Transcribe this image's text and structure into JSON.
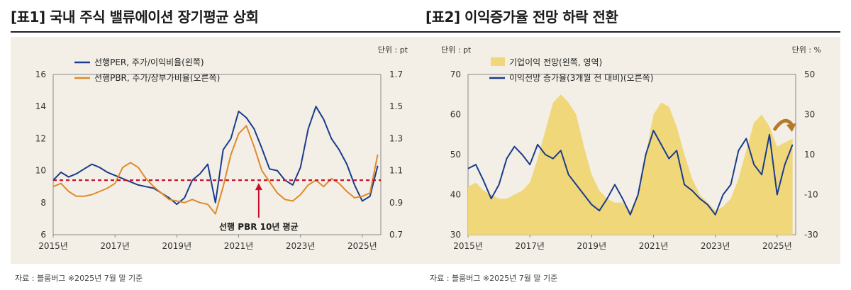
{
  "colors": {
    "navy": "#1a3c8c",
    "orange": "#e08a2a",
    "gold_area": "#f0d77a",
    "red_dashed": "#c8102e",
    "panel_bg": "#f3efe6"
  },
  "panels": [
    {
      "title": "[표1] 국내 주식 밸류에이션 장기평균 상회",
      "source": "자료 : 블룸버그 ※2025년 7월 말 기준"
    },
    {
      "title": "[표2] 이익증가율 전망 하락 전환",
      "source": "자료 : 블룸버그 ※2025년 7월 말 기준"
    }
  ],
  "chart_data": [
    {
      "type": "line",
      "unit_label": "단위 : pt",
      "x_ticks": [
        "2015년",
        "2017년",
        "2019년",
        "2021년",
        "2023년",
        "2025년"
      ],
      "x_range": [
        2015.0,
        2025.6
      ],
      "y_left": {
        "range": [
          6,
          16
        ],
        "ticks": [
          "16",
          "14",
          "12",
          "10",
          "8",
          "6"
        ]
      },
      "y_right": {
        "range": [
          0.7,
          1.7
        ],
        "ticks": [
          "1.7",
          "1.5",
          "1.3",
          "1.1",
          "0.9",
          "0.7"
        ]
      },
      "series": [
        {
          "name": "선행PER, 주가/이익비율(왼쪽)",
          "axis": "left",
          "color": "navy",
          "x": [
            2015.0,
            2015.25,
            2015.5,
            2015.75,
            2016.0,
            2016.25,
            2016.5,
            2016.75,
            2017.0,
            2017.25,
            2017.5,
            2017.75,
            2018.0,
            2018.25,
            2018.5,
            2018.75,
            2019.0,
            2019.25,
            2019.5,
            2019.75,
            2020.0,
            2020.25,
            2020.5,
            2020.75,
            2021.0,
            2021.25,
            2021.5,
            2021.75,
            2022.0,
            2022.25,
            2022.5,
            2022.75,
            2023.0,
            2023.25,
            2023.5,
            2023.75,
            2024.0,
            2024.25,
            2024.5,
            2024.75,
            2025.0,
            2025.25,
            2025.5
          ],
          "values": [
            9.4,
            9.9,
            9.6,
            9.8,
            10.1,
            10.4,
            10.2,
            9.9,
            9.7,
            9.5,
            9.3,
            9.1,
            9.0,
            8.9,
            8.6,
            8.3,
            7.9,
            8.3,
            9.4,
            9.8,
            10.4,
            8.0,
            11.3,
            12.0,
            13.7,
            13.3,
            12.6,
            11.4,
            10.1,
            10.0,
            9.4,
            9.1,
            10.2,
            12.6,
            14.0,
            13.2,
            12.0,
            11.3,
            10.4,
            9.1,
            8.1,
            8.4,
            10.3
          ]
        },
        {
          "name": "선행PBR, 주가/장부가비율(오른쪽)",
          "axis": "right",
          "color": "orange",
          "x": [
            2015.0,
            2015.25,
            2015.5,
            2015.75,
            2016.0,
            2016.25,
            2016.5,
            2016.75,
            2017.0,
            2017.25,
            2017.5,
            2017.75,
            2018.0,
            2018.25,
            2018.5,
            2018.75,
            2019.0,
            2019.25,
            2019.5,
            2019.75,
            2020.0,
            2020.25,
            2020.5,
            2020.75,
            2021.0,
            2021.25,
            2021.5,
            2021.75,
            2022.0,
            2022.25,
            2022.5,
            2022.75,
            2023.0,
            2023.25,
            2023.5,
            2023.75,
            2024.0,
            2024.25,
            2024.5,
            2024.75,
            2025.0,
            2025.25,
            2025.5
          ],
          "values": [
            1.0,
            1.02,
            0.97,
            0.94,
            0.94,
            0.95,
            0.97,
            0.99,
            1.02,
            1.12,
            1.15,
            1.12,
            1.05,
            1.0,
            0.96,
            0.92,
            0.91,
            0.9,
            0.92,
            0.9,
            0.89,
            0.83,
            1.0,
            1.2,
            1.33,
            1.38,
            1.25,
            1.1,
            1.03,
            0.96,
            0.92,
            0.91,
            0.95,
            1.01,
            1.04,
            1.0,
            1.05,
            1.02,
            0.97,
            0.93,
            0.94,
            0.96,
            1.2
          ]
        }
      ],
      "reference_line": {
        "value": 9.4,
        "axis": "left",
        "label": "선행 PBR 10년 평균"
      }
    },
    {
      "type": "area",
      "unit_label_left": "단위 : pt",
      "unit_label_right": "단위 : %",
      "x_ticks": [
        "2015년",
        "2017년",
        "2019년",
        "2021년",
        "2023년",
        "2025년"
      ],
      "x_range": [
        2015.0,
        2025.6
      ],
      "y_left": {
        "range": [
          30,
          70
        ],
        "ticks": [
          "70",
          "60",
          "50",
          "40",
          "30"
        ]
      },
      "y_right": {
        "range": [
          -30,
          50
        ],
        "ticks": [
          "50",
          "30",
          "10",
          "-10",
          "-30"
        ]
      },
      "series": [
        {
          "name": "기업이익 전망(왼쪽, 영역)",
          "axis": "left",
          "style": "area",
          "color": "gold_area",
          "x": [
            2015.0,
            2015.25,
            2015.5,
            2015.75,
            2016.0,
            2016.25,
            2016.5,
            2016.75,
            2017.0,
            2017.25,
            2017.5,
            2017.75,
            2018.0,
            2018.25,
            2018.5,
            2018.75,
            2019.0,
            2019.25,
            2019.5,
            2019.75,
            2020.0,
            2020.25,
            2020.5,
            2020.75,
            2021.0,
            2021.25,
            2021.5,
            2021.75,
            2022.0,
            2022.25,
            2022.5,
            2022.75,
            2023.0,
            2023.25,
            2023.5,
            2023.75,
            2024.0,
            2024.25,
            2024.5,
            2024.75,
            2025.0,
            2025.25,
            2025.5
          ],
          "values": [
            42,
            43,
            41,
            40,
            39,
            39,
            40,
            41,
            43,
            49,
            56,
            63,
            65,
            63,
            60,
            52,
            45,
            41,
            39,
            38,
            38,
            36,
            40,
            50,
            60,
            63,
            62,
            57,
            50,
            44,
            40,
            38,
            36,
            37,
            39,
            44,
            51,
            58,
            60,
            57,
            52,
            53,
            54
          ]
        },
        {
          "name": "이익전망 증가율(3개월 전 대비)(오른쪽)",
          "axis": "right",
          "style": "line",
          "color": "navy",
          "x": [
            2015.0,
            2015.25,
            2015.5,
            2015.75,
            2016.0,
            2016.25,
            2016.5,
            2016.75,
            2017.0,
            2017.25,
            2017.5,
            2017.75,
            2018.0,
            2018.25,
            2018.5,
            2018.75,
            2019.0,
            2019.25,
            2019.5,
            2019.75,
            2020.0,
            2020.25,
            2020.5,
            2020.75,
            2021.0,
            2021.25,
            2021.5,
            2021.75,
            2022.0,
            2022.25,
            2022.5,
            2022.75,
            2023.0,
            2023.25,
            2023.5,
            2023.75,
            2024.0,
            2024.25,
            2024.5,
            2024.75,
            2025.0,
            2025.25,
            2025.5
          ],
          "values": [
            3,
            5,
            -3,
            -12,
            -5,
            8,
            14,
            10,
            5,
            15,
            10,
            8,
            12,
            0,
            -5,
            -10,
            -15,
            -18,
            -12,
            -5,
            -12,
            -20,
            -10,
            10,
            22,
            15,
            8,
            12,
            -5,
            -8,
            -12,
            -15,
            -20,
            -10,
            -5,
            12,
            18,
            5,
            0,
            20,
            -10,
            5,
            15
          ]
        }
      ],
      "annotation": "curved-arrow-down"
    }
  ]
}
